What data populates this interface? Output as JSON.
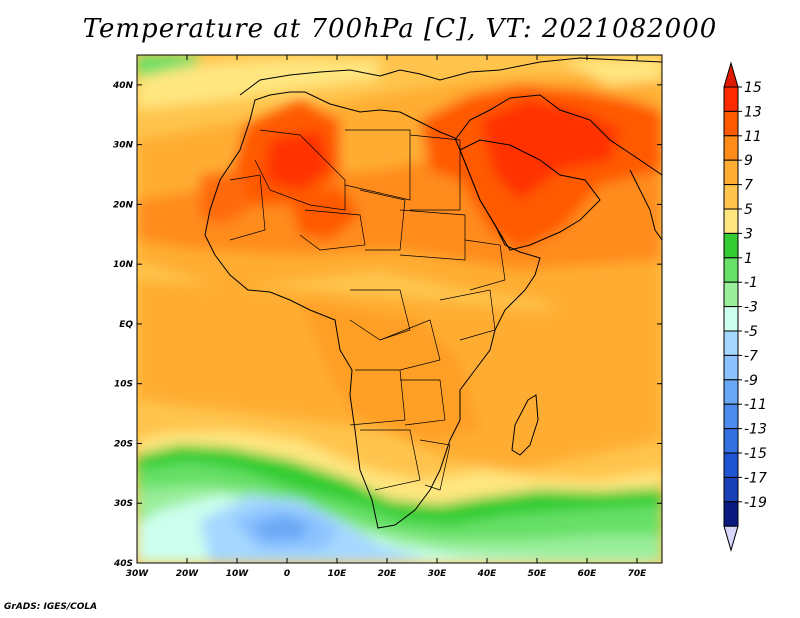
{
  "title": "Temperature at 700hPa [C], VT: 2021082000",
  "credit": "GrADS: IGES/COLA",
  "map": {
    "lon_range": [
      -30,
      75
    ],
    "lat_range": [
      -40,
      45
    ],
    "x_ticks": [
      "30W",
      "20W",
      "10W",
      "0",
      "10E",
      "20E",
      "30E",
      "40E",
      "50E",
      "60E",
      "70E"
    ],
    "y_ticks": [
      "40N",
      "30N",
      "20N",
      "10N",
      "EQ",
      "10S",
      "20S",
      "30S",
      "40S"
    ]
  },
  "colorbar": {
    "levels": [
      {
        "label": "15",
        "color": "#ff2a00"
      },
      {
        "label": "13",
        "color": "#ff5a00"
      },
      {
        "label": "11",
        "color": "#ff8c1a"
      },
      {
        "label": "9",
        "color": "#ffad33"
      },
      {
        "label": "7",
        "color": "#ffc44d"
      },
      {
        "label": "5",
        "color": "#ffe680"
      },
      {
        "label": "3",
        "color": "#33cc33"
      },
      {
        "label": "1",
        "color": "#66e066"
      },
      {
        "label": "-1",
        "color": "#99ee99"
      },
      {
        "label": "-3",
        "color": "#ccffee"
      },
      {
        "label": "-5",
        "color": "#a6d8ff"
      },
      {
        "label": "-7",
        "color": "#8cc2ff"
      },
      {
        "label": "-9",
        "color": "#6aa8f5"
      },
      {
        "label": "-11",
        "color": "#4d8cec"
      },
      {
        "label": "-13",
        "color": "#3370e0"
      },
      {
        "label": "-15",
        "color": "#1f55d0"
      },
      {
        "label": "-17",
        "color": "#1a40b8"
      },
      {
        "label": "-19",
        "color": "#0a1a80"
      }
    ],
    "top_color": "#e01a00",
    "bottom_color": "#d8d8ff"
  }
}
